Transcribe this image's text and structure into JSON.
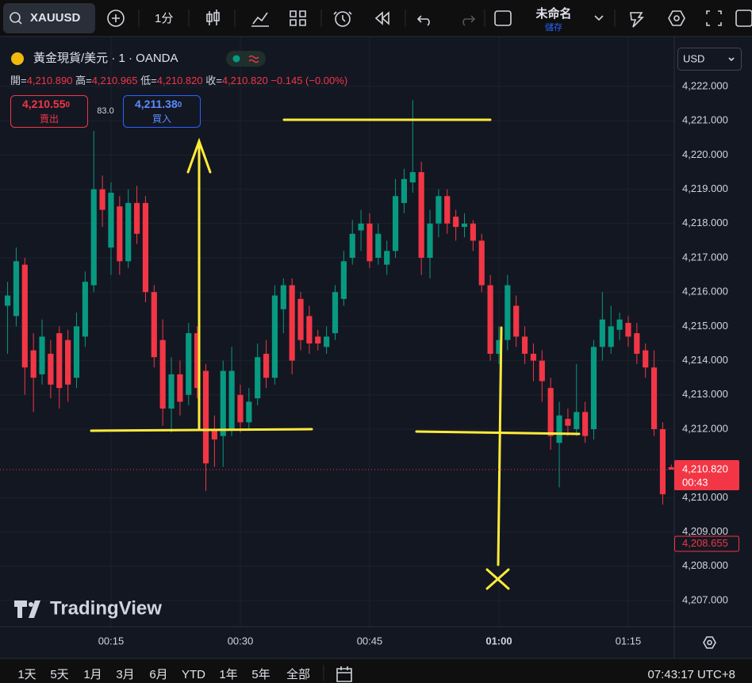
{
  "toolbar": {
    "symbol": "XAUUSD",
    "interval": "1分",
    "layout_name": "未命名",
    "save_label": "儲存"
  },
  "legend": {
    "title": "黃金現貨/美元 · 1 · OANDA",
    "open_label": "開",
    "open": "4,210.890",
    "high_label": "高",
    "high": "4,210.965",
    "low_label": "低",
    "low": "4,210.820",
    "close_label": "收",
    "close": "4,210.820",
    "change": "−0.145 (−0.00%)"
  },
  "trade": {
    "sell_price": "4,210.55",
    "sell_tail": "0",
    "sell_label": "賣出",
    "spread": "83.0",
    "buy_price": "4,211.38",
    "buy_tail": "0",
    "buy_label": "買入"
  },
  "currency": "USD",
  "watermark": "TradingView",
  "chart_data": {
    "type": "candlestick",
    "x": [
      3,
      4,
      5,
      6,
      7,
      8,
      9,
      10,
      11,
      12,
      13,
      14,
      15,
      16,
      17,
      18,
      19,
      20,
      21,
      22,
      23,
      24,
      25,
      26,
      27,
      28,
      29,
      30,
      31,
      32,
      33,
      34,
      35,
      36,
      37,
      38,
      39,
      40,
      41,
      42,
      43,
      44,
      45,
      46,
      47,
      48,
      49,
      50,
      51,
      52,
      53,
      54,
      55,
      56,
      57,
      58,
      59,
      60,
      61,
      62,
      63,
      64,
      65,
      66,
      67,
      68,
      69,
      70,
      71,
      72,
      73,
      74,
      75,
      76,
      77,
      78,
      79,
      80
    ],
    "open": [
      4215.6,
      4215.3,
      4216.8,
      4214.3,
      4213.6,
      4214.2,
      4214.8,
      4214.6,
      4213.5,
      4214.7,
      4216.2,
      4219.0,
      4217.3,
      4218.5,
      4216.9,
      4218.6,
      4218.6,
      4216.0,
      4214.6,
      4212.6,
      4213.6,
      4213.0,
      4214.8,
      4213.7,
      4212.0,
      4211.8,
      4212.0,
      4213.0,
      4212.2,
      4212.9,
      4214.2,
      4213.5,
      4215.5,
      4216.2,
      4215.8,
      4215.3,
      4214.7,
      4214.4,
      4214.8,
      4215.8,
      4217.0,
      4217.8,
      4218.0,
      4217.0,
      4216.8,
      4217.2,
      4218.6,
      4219.2,
      4219.5,
      4217.0,
      4218.0,
      4218.8,
      4218.2,
      4217.9,
      4218.0,
      4217.5,
      4216.2,
      4214.2,
      4214.6,
      4215.6,
      4214.7,
      4214.2,
      4214.0,
      4213.2,
      4211.6,
      4212.3,
      4212.0,
      4212.5,
      4212.0,
      4214.4,
      4214.4,
      4214.9,
      4215.1,
      4214.8,
      4214.3,
      4213.8,
      4212.0,
      4210.89
    ],
    "high": [
      4216.3,
      4217.3,
      4217.0,
      4214.8,
      4215.2,
      4214.6,
      4215.0,
      4214.9,
      4215.4,
      4216.6,
      4220.7,
      4219.4,
      4219.2,
      4218.8,
      4219.0,
      4219.1,
      4218.8,
      4216.2,
      4215.2,
      4214.1,
      4214.0,
      4215.1,
      4215.0,
      4213.9,
      4212.4,
      4214.0,
      4214.4,
      4213.3,
      4213.2,
      4214.5,
      4214.6,
      4216.2,
      4216.4,
      4216.4,
      4216.0,
      4215.6,
      4214.9,
      4215.0,
      4216.2,
      4217.2,
      4218.1,
      4218.4,
      4218.3,
      4218.0,
      4217.5,
      4219.3,
      4219.6,
      4221.6,
      4219.8,
      4218.4,
      4219.0,
      4219.0,
      4218.4,
      4218.3,
      4218.1,
      4217.7,
      4216.5,
      4215.0,
      4216.5,
      4215.9,
      4215.0,
      4214.5,
      4214.3,
      4213.5,
      4212.8,
      4212.6,
      4213.9,
      4212.8,
      4214.6,
      4216.0,
      4215.6,
      4215.4,
      4215.3,
      4215.1,
      4214.5,
      4214.3,
      4212.2,
      4210.965
    ],
    "low": [
      4214.2,
      4215.0,
      4213.0,
      4212.5,
      4213.3,
      4212.9,
      4212.6,
      4212.8,
      4213.2,
      4214.4,
      4216.0,
      4217.9,
      4216.5,
      4216.5,
      4216.7,
      4217.4,
      4215.7,
      4213.8,
      4212.1,
      4211.9,
      4212.4,
      4212.7,
      4212.9,
      4210.2,
      4210.9,
      4210.9,
      4211.8,
      4211.9,
      4212.0,
      4212.7,
      4213.2,
      4213.3,
      4214.8,
      4213.6,
      4214.3,
      4214.2,
      4214.3,
      4214.2,
      4214.6,
      4215.6,
      4216.8,
      4217.2,
      4216.7,
      4216.8,
      4216.5,
      4217.0,
      4218.3,
      4218.9,
      4216.5,
      4216.4,
      4217.6,
      4217.7,
      4217.5,
      4217.6,
      4217.2,
      4216.0,
      4214.0,
      4213.9,
      4214.3,
      4214.4,
      4213.9,
      4213.4,
      4212.8,
      4211.4,
      4210.3,
      4211.8,
      4211.8,
      4211.6,
      4211.7,
      4214.0,
      4214.2,
      4214.6,
      4214.4,
      4213.9,
      4213.5,
      4211.8,
      4209.8,
      4210.82
    ],
    "close": [
      4215.9,
      4216.9,
      4213.8,
      4213.5,
      4214.7,
      4213.3,
      4213.2,
      4213.3,
      4215.0,
      4216.3,
      4219.0,
      4218.4,
      4218.9,
      4216.9,
      4218.6,
      4217.7,
      4216.0,
      4214.1,
      4212.6,
      4213.6,
      4212.8,
      4214.8,
      4213.2,
      4211.0,
      4211.7,
      4213.7,
      4213.7,
      4212.2,
      4212.8,
      4214.1,
      4213.5,
      4215.9,
      4216.2,
      4214.0,
      4214.6,
      4214.5,
      4214.5,
      4214.7,
      4216.0,
      4216.9,
      4217.7,
      4218.0,
      4216.9,
      4217.7,
      4217.2,
      4218.8,
      4219.3,
      4219.5,
      4217.0,
      4218.0,
      4218.8,
      4218.0,
      4217.9,
      4218.0,
      4217.5,
      4216.2,
      4214.2,
      4214.6,
      4216.2,
      4214.7,
      4214.2,
      4214.0,
      4213.4,
      4211.8,
      4212.4,
      4212.1,
      4212.5,
      4211.8,
      4214.4,
      4215.2,
      4215.0,
      4215.2,
      4214.7,
      4214.2,
      4213.8,
      4212.0,
      4210.1,
      4210.82
    ],
    "up_color": "#089981",
    "down_color": "#f23645",
    "xlim": [
      2.12,
      80.34
    ],
    "ylim": [
      4206.236,
      4223.134
    ],
    "xticks": [
      {
        "value": 15,
        "label": "00:15"
      },
      {
        "value": 30,
        "label": "00:30"
      },
      {
        "value": 45,
        "label": "00:45"
      },
      {
        "value": 60,
        "label": "01:00"
      },
      {
        "value": 75,
        "label": "01:15"
      }
    ],
    "yticks": [
      {
        "value": 4207,
        "label": "4,207.000"
      },
      {
        "value": 4208,
        "label": "4,208.000"
      },
      {
        "value": 4209,
        "label": "4,209.000"
      },
      {
        "value": 4210,
        "label": "4,210.000"
      },
      {
        "value": 4212,
        "label": "4,212.000"
      },
      {
        "value": 4213,
        "label": "4,213.000"
      },
      {
        "value": 4214,
        "label": "4,214.000"
      },
      {
        "value": 4215,
        "label": "4,215.000"
      },
      {
        "value": 4216,
        "label": "4,216.000"
      },
      {
        "value": 4217,
        "label": "4,217.000"
      },
      {
        "value": 4218,
        "label": "4,218.000"
      },
      {
        "value": 4219,
        "label": "4,219.000"
      },
      {
        "value": 4220,
        "label": "4,220.000"
      },
      {
        "value": 4221,
        "label": "4,221.000"
      },
      {
        "value": 4222,
        "label": "4,222.000"
      }
    ],
    "grid": true,
    "last_price": {
      "value": 4210.82,
      "label": "4,210.820",
      "countdown": "00:43"
    },
    "marker_price": {
      "value": 4208.655,
      "label": "4,208.655"
    }
  },
  "ranges": [
    "1天",
    "5天",
    "1月",
    "3月",
    "6月",
    "YTD",
    "1年",
    "5年",
    "全部"
  ],
  "clock": "07:43:17 UTC+8"
}
